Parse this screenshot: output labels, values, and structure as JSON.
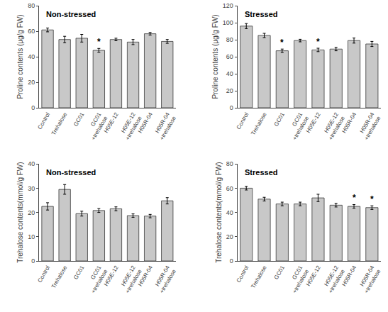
{
  "chart_data": [
    {
      "type": "bar",
      "title": "Non-stressed",
      "ylabel": "Proline contents (μg/g FW)",
      "categories": [
        "Control",
        "Trehalose",
        "GC01",
        "GC01\n+trehalose",
        "H05E-12",
        "H05E-12\n+trehalose",
        "H05R-04",
        "H05R-04\n+trehalose"
      ],
      "values": [
        61,
        53.5,
        54.5,
        45,
        53.5,
        51.5,
        58,
        52
      ],
      "errors": [
        1.5,
        2.5,
        3,
        1.5,
        1,
        2,
        1,
        1.5
      ],
      "annotations": [
        {
          "category": "GC01\n+trehalose",
          "text": "*"
        }
      ],
      "color": "#c8c8c8",
      "ylim": [
        0,
        80
      ],
      "yticks": [
        0,
        20,
        40,
        60,
        80
      ],
      "grid": false
    },
    {
      "type": "bar",
      "title": "Stressed",
      "ylabel": "Proline contents (μg/g FW)",
      "categories": [
        "Control",
        "Trehalose",
        "GC01",
        "GC01\n+trehalose",
        "H05E-12",
        "H05E-12\n+trehalose",
        "H05R-04",
        "H05R-04\n+trehalose"
      ],
      "values": [
        96,
        85,
        67,
        79,
        68,
        69,
        79,
        75
      ],
      "errors": [
        3,
        2.5,
        2,
        1.5,
        2,
        2,
        3,
        3
      ],
      "annotations": [
        {
          "category": "GC01",
          "text": "*"
        },
        {
          "category": "H05E-12",
          "text": "*"
        }
      ],
      "color": "#c8c8c8",
      "ylim": [
        0,
        120
      ],
      "yticks": [
        0,
        20,
        40,
        60,
        80,
        100,
        120
      ],
      "grid": false
    },
    {
      "type": "bar",
      "title": "Non-stressed",
      "ylabel": "Trehalose contents(mmol/g FW)",
      "categories": [
        "Control",
        "Trehalose",
        "GC01",
        "GC01\n+trehalose",
        "H05E-12",
        "H05E-12\n+trehalose",
        "H05R-04",
        "H05R-04\n+trehalose"
      ],
      "values": [
        22.5,
        29.5,
        19.5,
        20.8,
        21.5,
        18.7,
        18.5,
        24.8
      ],
      "errors": [
        1.5,
        2,
        1,
        0.8,
        0.8,
        0.7,
        0.7,
        1.3
      ],
      "annotations": [],
      "color": "#c8c8c8",
      "ylim": [
        0,
        40
      ],
      "yticks": [
        0,
        10,
        20,
        30,
        40
      ],
      "grid": false
    },
    {
      "type": "bar",
      "title": "Stressed",
      "ylabel": "Trehalose contents(mmol/g FW)",
      "categories": [
        "Control",
        "Trehalose",
        "GC01",
        "GC01\n+trehalose",
        "H05E-12",
        "H05E-12\n+trehalose",
        "H05R-04",
        "H05R-04\n+trehalose"
      ],
      "values": [
        60,
        51,
        47,
        47,
        52,
        46,
        45,
        44
      ],
      "errors": [
        1.5,
        1.5,
        1.5,
        1.5,
        3,
        1.5,
        1.5,
        1.5
      ],
      "annotations": [
        {
          "category": "H05R-04",
          "text": "*"
        },
        {
          "category": "H05R-04\n+trehalose",
          "text": "*"
        }
      ],
      "color": "#c8c8c8",
      "ylim": [
        0,
        80
      ],
      "yticks": [
        0,
        20,
        40,
        60,
        80
      ],
      "grid": false
    }
  ]
}
